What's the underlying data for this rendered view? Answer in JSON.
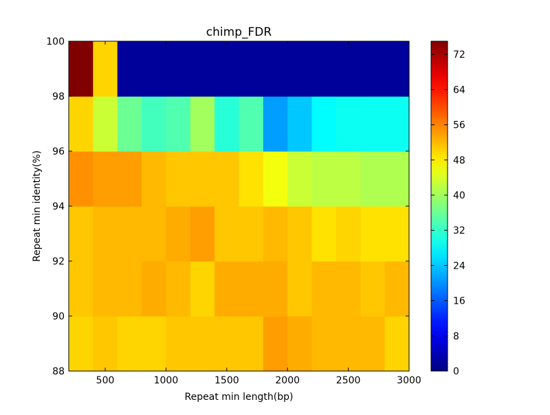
{
  "chart_data": {
    "type": "heatmap",
    "title": "chimp_FDR",
    "xlabel": "Repeat min length(bp)",
    "ylabel": "Repeat min identity(%)",
    "x_edges": [
      200,
      400,
      600,
      800,
      1000,
      1200,
      1400,
      1600,
      1800,
      2000,
      2200,
      2400,
      2600,
      2800,
      3000
    ],
    "y_edges": [
      88,
      90,
      92,
      94,
      96,
      98,
      100
    ],
    "x_ticks": [
      500,
      1000,
      1500,
      2000,
      2500,
      3000
    ],
    "y_ticks": [
      88,
      90,
      92,
      94,
      96,
      98,
      100
    ],
    "xlim": [
      200,
      3000
    ],
    "ylim": [
      88,
      100
    ],
    "colormap": "jet",
    "vmin": 0,
    "vmax": 75,
    "colorbar_ticks": [
      0,
      8,
      16,
      24,
      32,
      40,
      48,
      56,
      64,
      72
    ],
    "values": [
      [
        50,
        51,
        50,
        50,
        51,
        51,
        51,
        51,
        54,
        53,
        52,
        52,
        52,
        50
      ],
      [
        51,
        52,
        52,
        53,
        52,
        50,
        53,
        53,
        53,
        51,
        52,
        52,
        51,
        52
      ],
      [
        51,
        52,
        52,
        52,
        53,
        54,
        51,
        51,
        52,
        51,
        49,
        50,
        49,
        49
      ],
      [
        55,
        54,
        54,
        52,
        51,
        51,
        51,
        49,
        46,
        43,
        42,
        42,
        41,
        41
      ],
      [
        50,
        43,
        36,
        33,
        34,
        40,
        31,
        34,
        21,
        24,
        28,
        29,
        29,
        29
      ],
      [
        75,
        50,
        2,
        2,
        2,
        2,
        2,
        2,
        2,
        2,
        2,
        2,
        2,
        2
      ]
    ]
  }
}
